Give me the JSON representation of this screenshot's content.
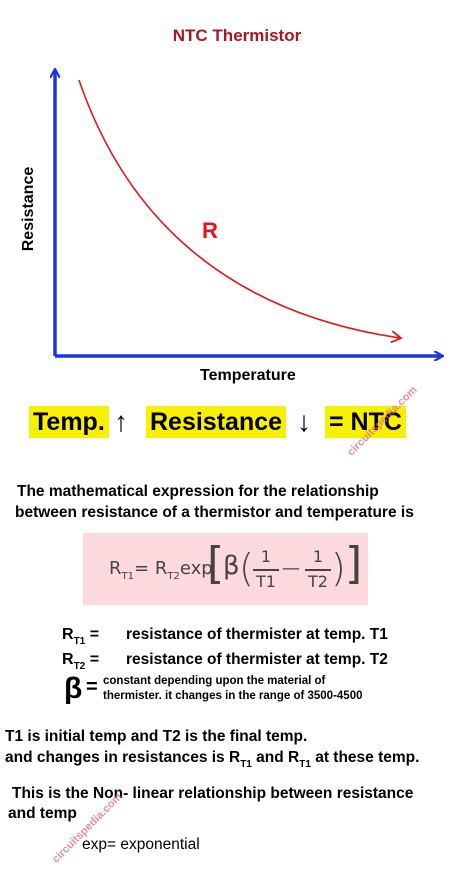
{
  "title": "NTC Thermistor",
  "graph": {
    "y_axis_label": "Resistance",
    "x_axis_label": "Temperature",
    "curve_label": "R",
    "axis_color": "#1a33e6",
    "curve_color": "#e11a1a"
  },
  "banner": {
    "part1": "Temp.",
    "arrow_up": "↑",
    "part2": "Resistance",
    "arrow_down": "↓",
    "part3": "= NTC",
    "highlight_color": "#f7f000"
  },
  "intro": {
    "line1": "The mathematical expression for the relationship",
    "line2": "between resistance of a thermistor and temperature is"
  },
  "formula": {
    "lhs_base": "R",
    "lhs_sub": "T1",
    "eq": "=",
    "rhs_base": "R",
    "rhs_sub": "T2",
    "func": "exp",
    "beta": "β",
    "num1": "1",
    "den1": "T1",
    "minus": "—",
    "num2": "1",
    "den2": "T2",
    "box_color": "#fbd9dc"
  },
  "definitions": [
    {
      "symbol": "R",
      "sub": "T1",
      "eq": "=",
      "text": "resistance of thermister at temp. T1"
    },
    {
      "symbol": "R",
      "sub": "T2",
      "eq": "=",
      "text": "resistance of thermister at temp. T2"
    }
  ],
  "beta_def": {
    "symbol": "β",
    "eq": "=",
    "line1": "constant depending upon the material of",
    "line2": "thermister. it changes in the range of 3500-4500"
  },
  "temps": {
    "line1": "T1 is initial temp and T2 is the final temp.",
    "line2_a": "and changes in resistances is R",
    "line2_sub1": "T1",
    "line2_b": " and R",
    "line2_sub2": "T1",
    "line2_c": " at these temp."
  },
  "nonlinear": {
    "line1": "This is the Non- linear relationship between resistance",
    "line2": "and temp"
  },
  "exp_note": "exp= exponential",
  "watermark": "circuitspedia.com"
}
